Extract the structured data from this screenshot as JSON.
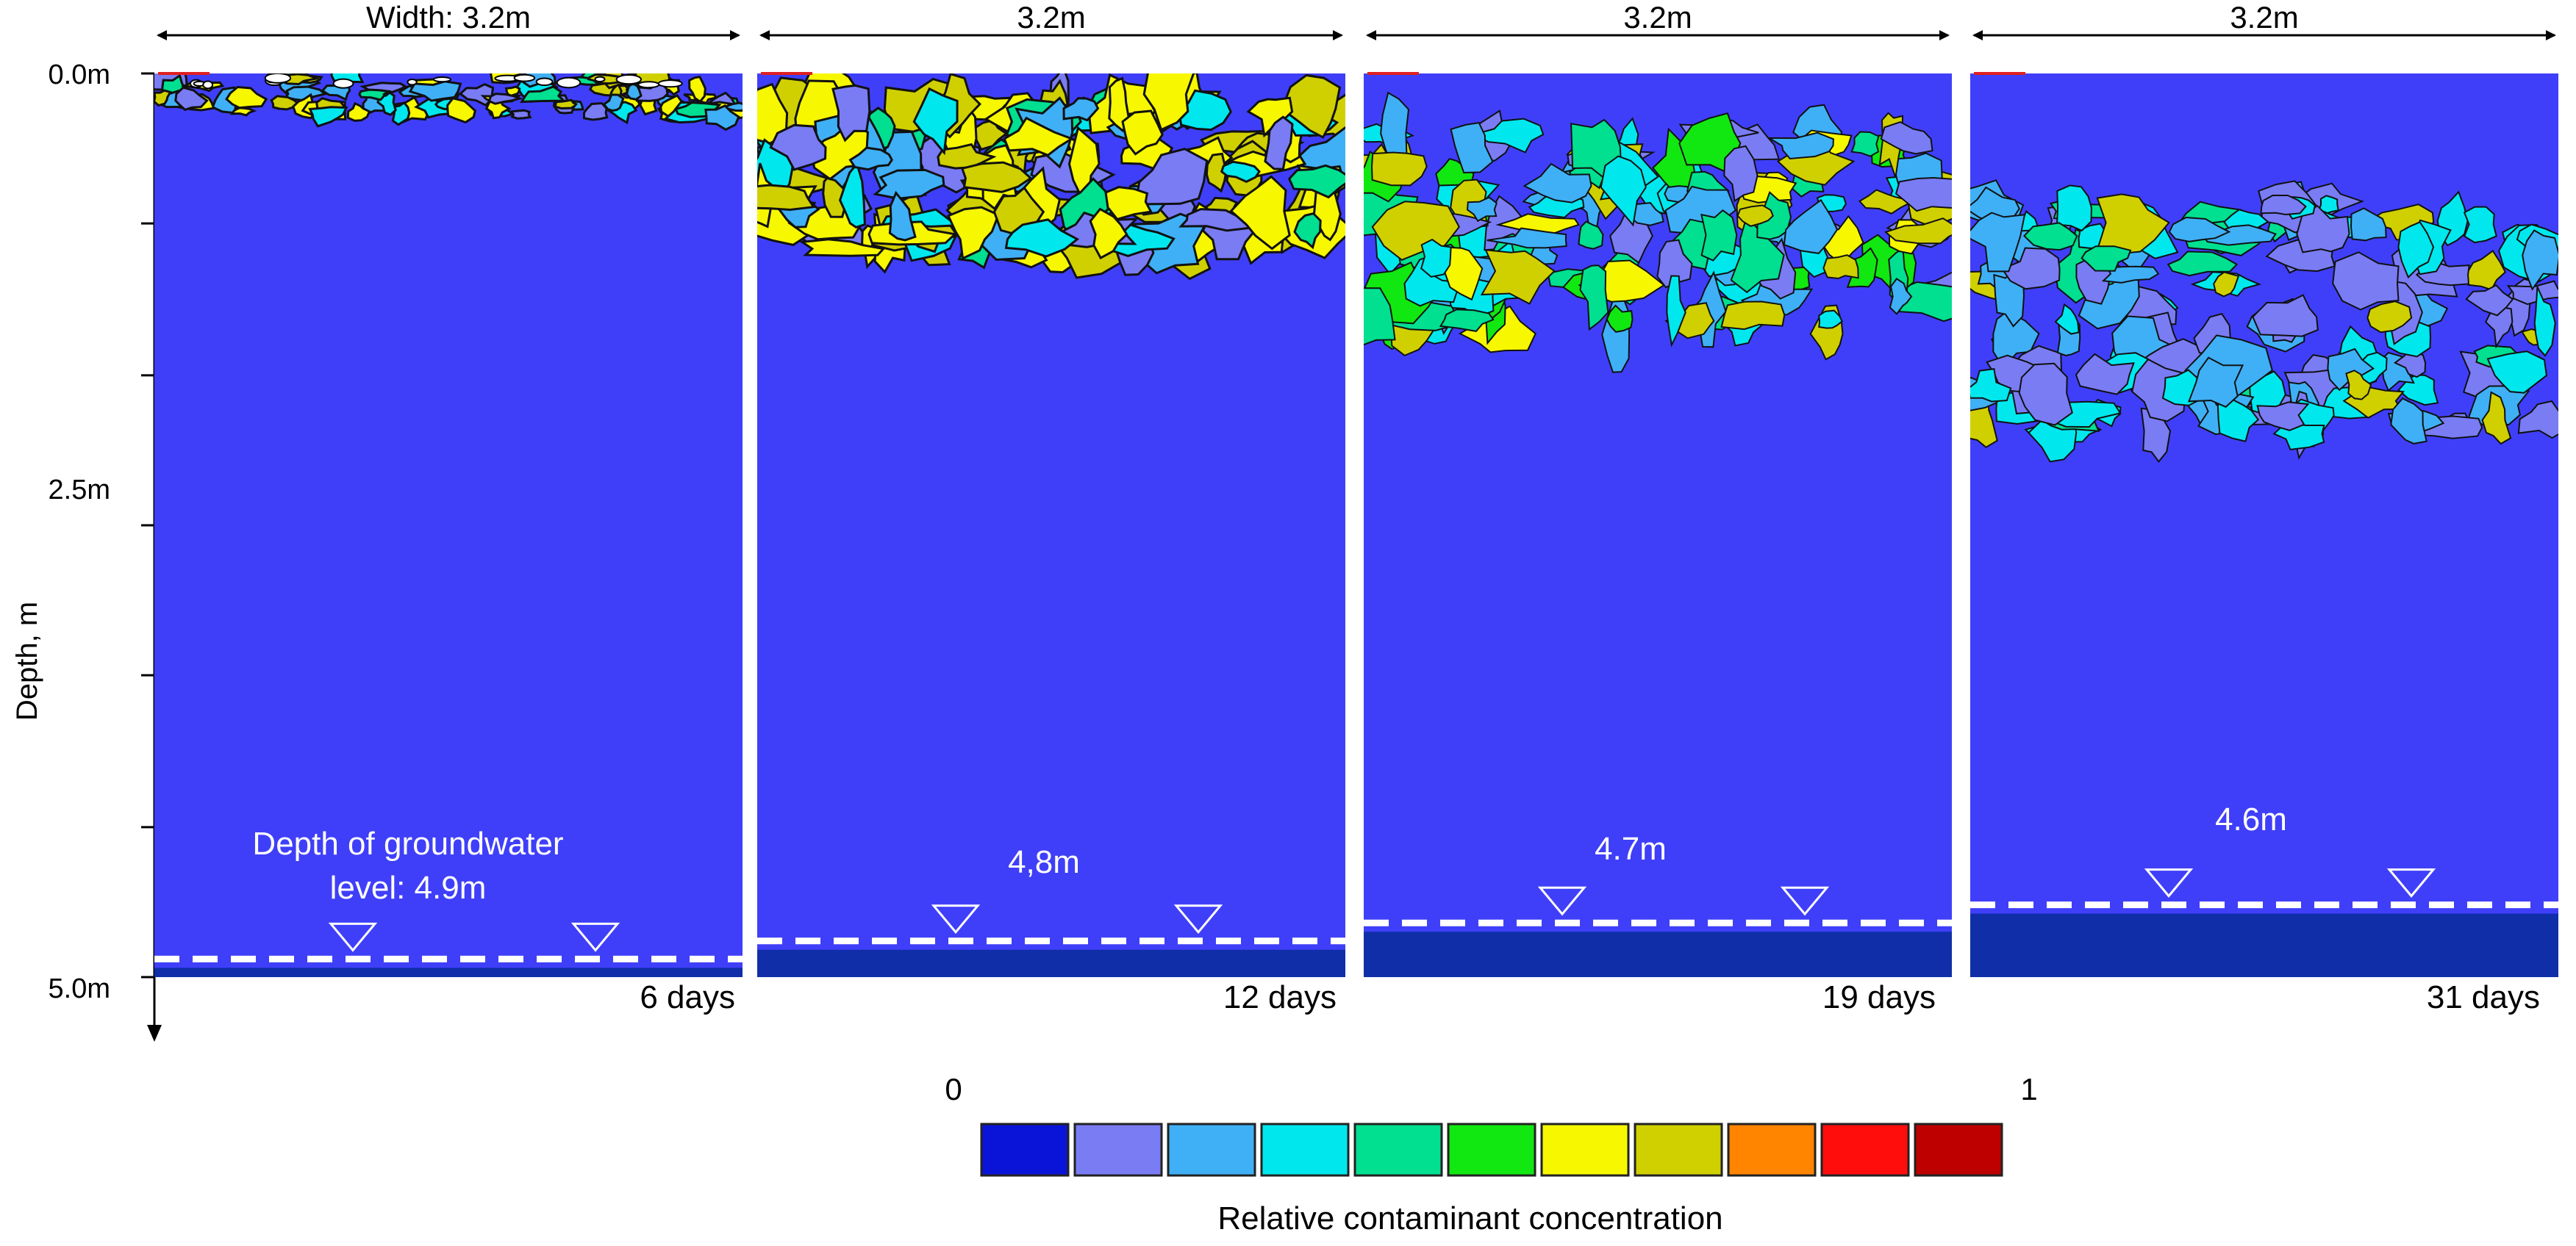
{
  "y_axis": {
    "label": "Depth, m",
    "tick_labels": [
      "0.0m",
      "2.5m",
      "5.0m"
    ],
    "ticks_m": [
      0,
      0.83,
      1.67,
      2.5,
      3.33,
      4.17,
      5.0
    ],
    "range_m": [
      0,
      5.0
    ]
  },
  "panels": [
    {
      "width_label": "Width: 3.2m",
      "time_label": "6 days",
      "water_level_label": [
        "Depth of groundwater",
        "level: 4.9m"
      ],
      "water_depth_m": 4.9,
      "plume_depth_m": [
        0.0,
        0.25
      ],
      "plume_intensity": "high"
    },
    {
      "width_label": "3.2m",
      "time_label": "12 days",
      "water_level_label": [
        "4,8m"
      ],
      "water_depth_m": 4.8,
      "plume_depth_m": [
        0.1,
        1.0
      ],
      "plume_intensity": "high"
    },
    {
      "width_label": "3.2m",
      "time_label": "19 days",
      "water_level_label": [
        "4.7m"
      ],
      "water_depth_m": 4.7,
      "plume_depth_m": [
        0.3,
        1.45
      ],
      "plume_intensity": "medium"
    },
    {
      "width_label": "3.2m",
      "time_label": "31 days",
      "water_level_label": [
        "4.6m"
      ],
      "water_depth_m": 4.6,
      "plume_depth_m": [
        0.7,
        2.0
      ],
      "plume_intensity": "low"
    }
  ],
  "legend": {
    "title": "Relative contaminant concentration",
    "min_label": "0",
    "max_label": "1",
    "colors": [
      "#0a14d8",
      "#7a7cf4",
      "#3fb0f6",
      "#00e8ee",
      "#00e090",
      "#11e811",
      "#f7f700",
      "#d0d000",
      "#ff8400",
      "#ff0d0d",
      "#be0000"
    ]
  },
  "colors": {
    "background_soil": "#3f3ff9",
    "saturated_zone": "#0f2ea8",
    "water_line": "#ffffff",
    "marker_arrow": "#e02020"
  }
}
